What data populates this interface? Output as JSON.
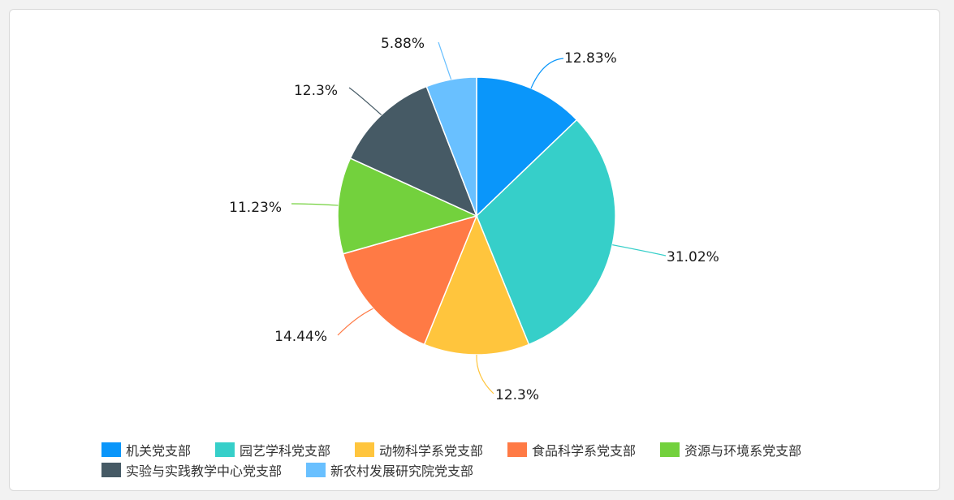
{
  "chart_data": {
    "type": "pie",
    "categories": [
      "机关党支部",
      "园艺学科党支部",
      "动物科学系党支部",
      "食品科学系党支部",
      "资源与环境系党支部",
      "实验与实践教学中心党支部",
      "新农村发展研究院党支部"
    ],
    "values": [
      12.83,
      31.02,
      12.3,
      14.44,
      11.23,
      12.3,
      5.88
    ],
    "labels": [
      "12.83%",
      "31.02%",
      "12.3%",
      "14.44%",
      "11.23%",
      "12.3%",
      "5.88%"
    ],
    "colors": [
      "#0a96fa",
      "#36cfc9",
      "#ffc53d",
      "#ff7a45",
      "#73d13d",
      "#465a65",
      "#69c0ff"
    ],
    "legend_position": "bottom",
    "title": ""
  }
}
